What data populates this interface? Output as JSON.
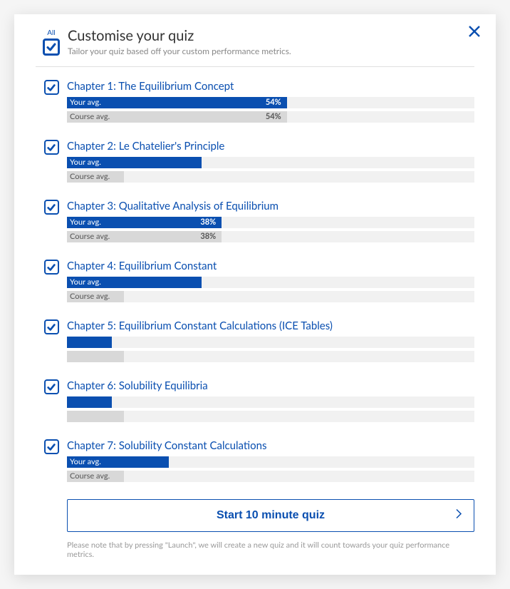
{
  "colors": {
    "accent": "#0a4fb0",
    "bar_bg": "#f1f1f1",
    "course_bar": "#d8d8d8",
    "text_muted": "#888"
  },
  "header": {
    "all_label": "All",
    "title": "Customise your quiz",
    "subtitle": "Tailor your quiz based off your custom performance metrics."
  },
  "chapters": [
    {
      "checked": true,
      "title": "Chapter 1: The Equilibrium Concept",
      "your_label": "Your avg.",
      "your_pct_label": "54%",
      "your_pct": 54,
      "course_label": "Course avg.",
      "course_pct_label": "54%",
      "course_pct": 54,
      "show_pct": true
    },
    {
      "checked": true,
      "title": "Chapter 2: Le Chatelier's Principle",
      "your_label": "Your avg.",
      "your_pct_label": "",
      "your_pct": 33,
      "course_label": "Course avg.",
      "course_pct_label": "",
      "course_pct": 14,
      "show_pct": false
    },
    {
      "checked": true,
      "title": "Chapter 3: Qualitative Analysis of Equilibrium",
      "your_label": "Your avg.",
      "your_pct_label": "38%",
      "your_pct": 38,
      "course_label": "Course avg.",
      "course_pct_label": "38%",
      "course_pct": 38,
      "show_pct": true
    },
    {
      "checked": true,
      "title": "Chapter 4: Equilibrium Constant",
      "your_label": "Your avg.",
      "your_pct_label": "",
      "your_pct": 33,
      "course_label": "Course avg.",
      "course_pct_label": "",
      "course_pct": 14,
      "show_pct": false
    },
    {
      "checked": true,
      "title": "Chapter 5: Equilibrium Constant Calculations (ICE Tables)",
      "your_label": "",
      "your_pct_label": "",
      "your_pct": 11,
      "course_label": "",
      "course_pct_label": "",
      "course_pct": 14,
      "show_pct": false
    },
    {
      "checked": true,
      "title": "Chapter 6: Solubility Equilibria",
      "your_label": "",
      "your_pct_label": "",
      "your_pct": 11,
      "course_label": "",
      "course_pct_label": "",
      "course_pct": 14,
      "show_pct": false
    },
    {
      "checked": true,
      "title": "Chapter 7: Solubility Constant Calculations",
      "your_label": "Your avg.",
      "your_pct_label": "",
      "your_pct": 25,
      "course_label": "Course avg.",
      "course_pct_label": "",
      "course_pct": 14,
      "show_pct": false
    }
  ],
  "footer": {
    "button_label": "Start 10 minute quiz",
    "note": "Please note that by pressing \"Launch\", we will create a new quiz and it will count towards your quiz performance metrics."
  }
}
